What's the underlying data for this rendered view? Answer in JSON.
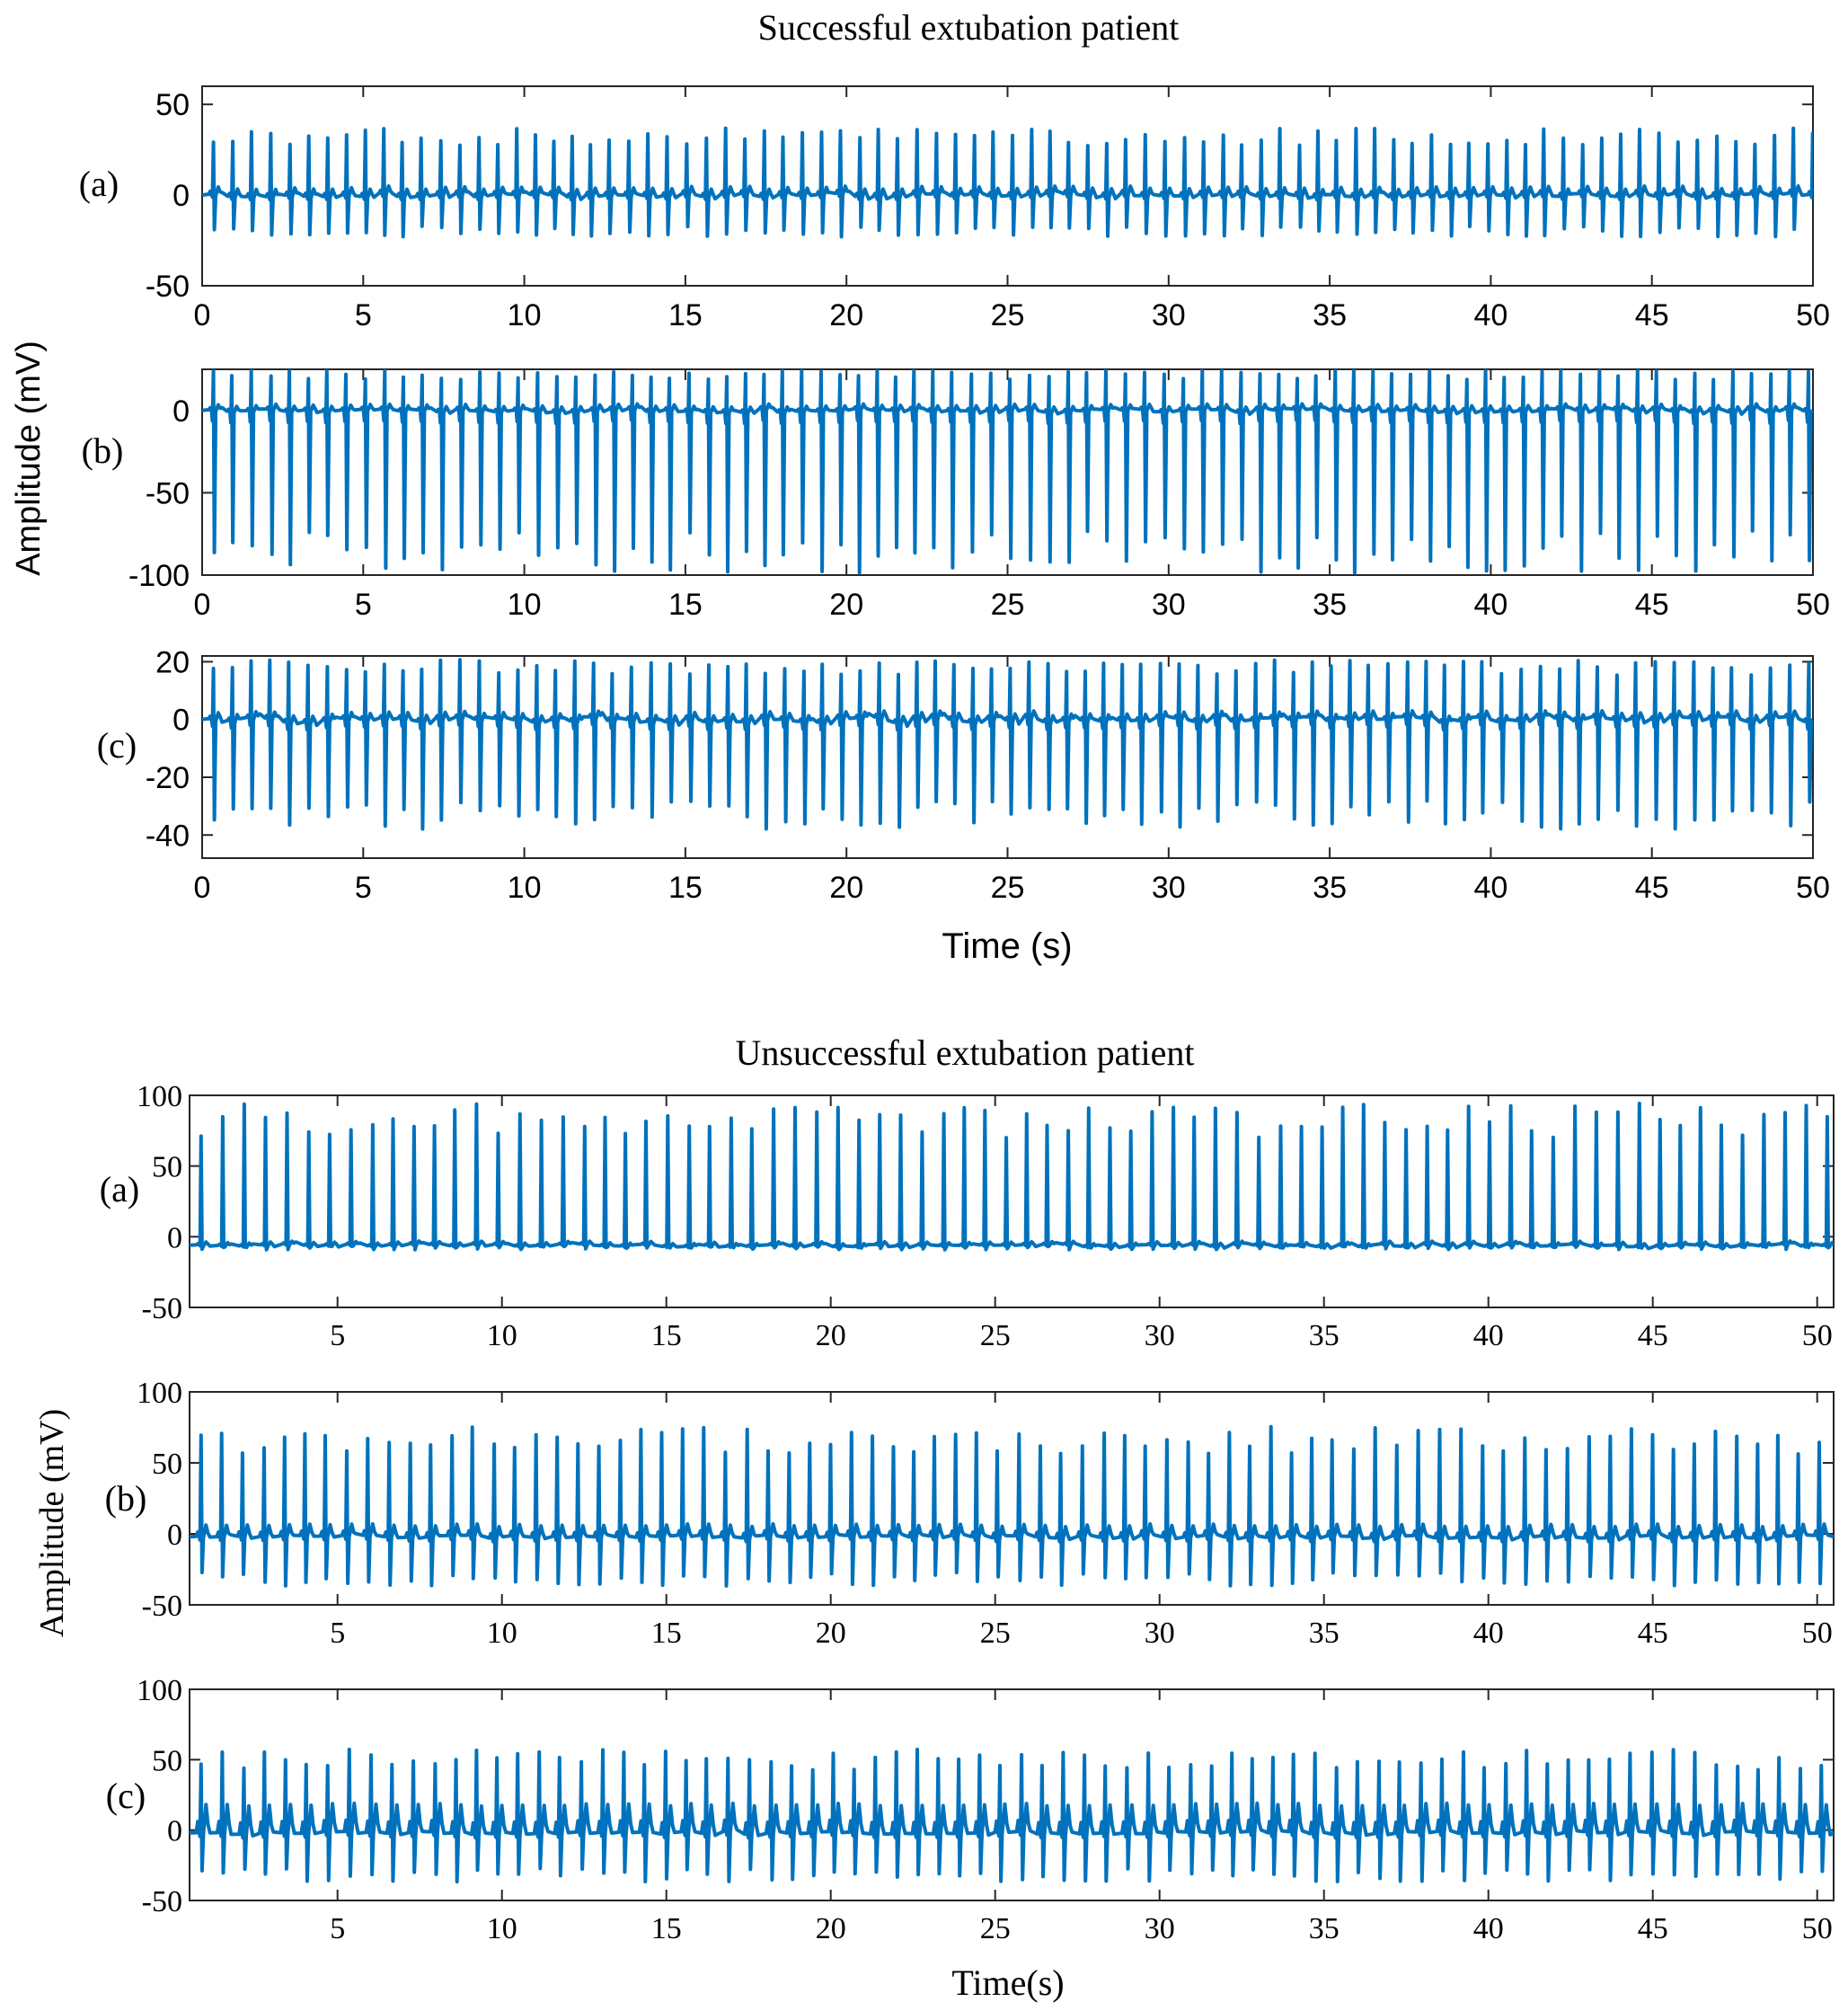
{
  "figures": [
    {
      "title": "Successful extubation patient",
      "ylabel": "Amplitude (mV)",
      "xlabel": "Time (s)"
    },
    {
      "title": "Unsuccessful extubation patient",
      "ylabel": "Amplitude (mV)",
      "xlabel": "Time(s)"
    }
  ],
  "chart_data": [
    {
      "type": "line",
      "title": "Successful extubation patient",
      "panel_label": "(a)",
      "xlabel": "Time (s)",
      "ylabel": "Amplitude (mV)",
      "xlim": [
        0,
        50
      ],
      "ylim": [
        -50,
        60
      ],
      "xticks": [
        0,
        5,
        10,
        15,
        20,
        25,
        30,
        35,
        40,
        45,
        50
      ],
      "yticks": [
        -50,
        0,
        50
      ],
      "color": "#0072BD",
      "series": [
        {
          "beat_interval_s": 0.59,
          "r_peak_mV": 32,
          "s_trough_mV": -20,
          "baseline_mV": 0,
          "t_wave_mV": 4
        }
      ]
    },
    {
      "type": "line",
      "title": "Successful extubation patient",
      "panel_label": "(b)",
      "xlabel": "Time (s)",
      "ylabel": "Amplitude (mV)",
      "xlim": [
        0,
        50
      ],
      "ylim": [
        -100,
        25
      ],
      "xticks": [
        0,
        5,
        10,
        15,
        20,
        25,
        30,
        35,
        40,
        45,
        50
      ],
      "yticks": [
        -100,
        -50,
        0
      ],
      "color": "#0072BD",
      "series": [
        {
          "beat_interval_s": 0.59,
          "r_peak_mV": 22,
          "s_trough_mV": -86,
          "baseline_mV": 0,
          "t_wave_mV": 3
        }
      ]
    },
    {
      "type": "line",
      "title": "Successful extubation patient",
      "panel_label": "(c)",
      "xlabel": "Time (s)",
      "ylabel": "Amplitude (mV)",
      "xlim": [
        0,
        50
      ],
      "ylim": [
        -48,
        22
      ],
      "xticks": [
        0,
        5,
        10,
        15,
        20,
        25,
        30,
        35,
        40,
        45,
        50
      ],
      "yticks": [
        -40,
        -20,
        0,
        20
      ],
      "color": "#0072BD",
      "series": [
        {
          "beat_interval_s": 0.59,
          "r_peak_mV": 18,
          "s_trough_mV": -33,
          "baseline_mV": 0,
          "t_wave_mV": 2
        }
      ]
    },
    {
      "type": "line",
      "title": "Unsuccessful extubation patient",
      "panel_label": "(a)",
      "xlabel": "Time(s)",
      "ylabel": "Amplitude (mV)",
      "xlim": [
        0.5,
        50.5
      ],
      "ylim": [
        -50,
        100
      ],
      "xticks": [
        5,
        10,
        15,
        20,
        25,
        30,
        35,
        40,
        45,
        50
      ],
      "yticks": [
        -50,
        0,
        50,
        100
      ],
      "color": "#0072BD",
      "series": [
        {
          "beat_interval_s": 0.64,
          "r_peak_mV": 82,
          "s_trough_mV": -8,
          "baseline_mV": -6,
          "t_wave_mV": 2
        }
      ]
    },
    {
      "type": "line",
      "title": "Unsuccessful extubation patient",
      "panel_label": "(b)",
      "xlabel": "Time(s)",
      "ylabel": "Amplitude (mV)",
      "xlim": [
        0.5,
        50.5
      ],
      "ylim": [
        -50,
        100
      ],
      "xticks": [
        5,
        10,
        15,
        20,
        25,
        30,
        35,
        40,
        45,
        50
      ],
      "yticks": [
        -50,
        0,
        50,
        100
      ],
      "color": "#0072BD",
      "series": [
        {
          "beat_interval_s": 0.64,
          "r_peak_mV": 66,
          "s_trough_mV": -32,
          "baseline_mV": -2,
          "t_wave_mV": 8
        }
      ]
    },
    {
      "type": "line",
      "title": "Unsuccessful extubation patient",
      "panel_label": "(c)",
      "xlabel": "Time(s)",
      "ylabel": "Amplitude (mV)",
      "xlim": [
        0.5,
        50.5
      ],
      "ylim": [
        -50,
        100
      ],
      "xticks": [
        5,
        10,
        15,
        20,
        25,
        30,
        35,
        40,
        45,
        50
      ],
      "yticks": [
        -50,
        0,
        50,
        100
      ],
      "color": "#0072BD",
      "series": [
        {
          "beat_interval_s": 0.64,
          "r_peak_mV": 50,
          "s_trough_mV": -32,
          "baseline_mV": -2,
          "t_wave_mV": 20
        }
      ]
    }
  ]
}
